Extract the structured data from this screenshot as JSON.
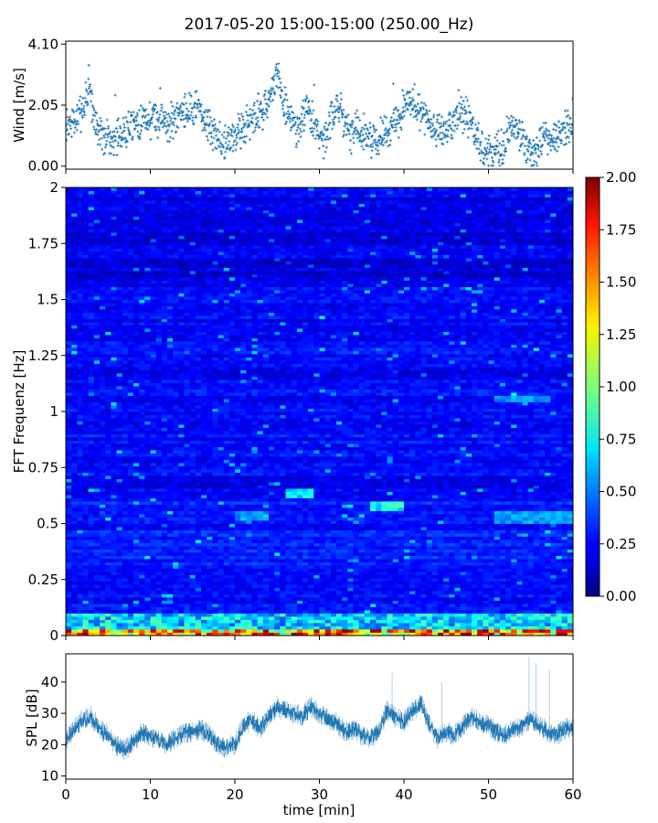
{
  "figure": {
    "title": "2017-05-20 15:00-15:00 (250.00_Hz)"
  },
  "chart_data": [
    {
      "id": "wind",
      "type": "scatter",
      "ylabel": "Wind [m/s]",
      "xlabel": "",
      "xlim": [
        0,
        60
      ],
      "ylim": [
        -0.1,
        4.2
      ],
      "yticks": [
        0.0,
        2.05,
        4.1
      ],
      "ytick_labels": [
        "0.00",
        "2.05",
        "4.10"
      ],
      "xticks": [
        0,
        10,
        20,
        30,
        40,
        50,
        60
      ],
      "color": "#1f77b4",
      "marker": "+",
      "x": [
        0,
        1,
        2,
        2.7,
        3.5,
        4.5,
        5.5,
        6.5,
        7.5,
        8.5,
        9.5,
        10.5,
        11.5,
        12.5,
        13.5,
        14.5,
        15.5,
        16.5,
        17.5,
        18.5,
        19.5,
        20.5,
        21.5,
        22.5,
        23.5,
        24.5,
        25.0,
        25.5,
        26.5,
        27.5,
        28.5,
        29.5,
        30.5,
        31.5,
        32.5,
        33.5,
        34.5,
        35.5,
        36.5,
        37.5,
        38.5,
        39.5,
        40.5,
        41.3,
        42.5,
        43.5,
        44.5,
        45.5,
        46.5,
        47.5,
        48.5,
        49.5,
        50.5,
        51.5,
        52.5,
        53.5,
        54.5,
        55.5,
        56.5,
        57.5,
        58.5,
        59.5
      ],
      "y": [
        1.2,
        1.5,
        1.9,
        2.6,
        1.3,
        1.0,
        0.9,
        1.0,
        1.3,
        1.5,
        1.6,
        1.5,
        1.7,
        1.4,
        1.8,
        1.9,
        2.0,
        1.6,
        1.0,
        0.8,
        0.9,
        1.2,
        1.4,
        1.7,
        1.9,
        2.5,
        3.3,
        2.4,
        1.6,
        1.2,
        2.0,
        1.3,
        0.9,
        1.7,
        1.9,
        1.0,
        1.3,
        1.1,
        0.8,
        1.0,
        1.3,
        1.5,
        2.2,
        2.0,
        1.6,
        1.3,
        1.1,
        1.4,
        1.8,
        1.7,
        1.0,
        0.5,
        0.4,
        0.6,
        1.2,
        1.3,
        0.5,
        0.4,
        0.9,
        1.0,
        1.2,
        1.3
      ]
    },
    {
      "id": "spectrogram",
      "type": "heatmap",
      "ylabel": "FFT Frequenz [Hz]",
      "xlabel": "",
      "xlim": [
        0,
        60
      ],
      "ylim": [
        0,
        2
      ],
      "yticks": [
        0,
        0.25,
        0.5,
        0.75,
        1,
        1.25,
        1.5,
        1.75,
        2
      ],
      "ytick_labels": [
        "0",
        "0.25",
        "0.5",
        "0.75",
        "1",
        "1.25",
        "1.5",
        "1.75",
        "2"
      ],
      "xticks": [
        0,
        10,
        20,
        30,
        40,
        50,
        60
      ],
      "colormap": "jet",
      "colorbar": {
        "vmin": 0.0,
        "vmax": 2.0,
        "ticks": [
          0.0,
          0.25,
          0.5,
          0.75,
          1.0,
          1.25,
          1.5,
          1.75,
          2.0
        ],
        "tick_labels": [
          "0.00",
          "0.25",
          "0.50",
          "0.75",
          "1.00",
          "1.25",
          "1.50",
          "1.75",
          "2.00"
        ],
        "placement": "right"
      },
      "features": [
        {
          "band_hz": [
            0.0,
            0.03
          ],
          "level": 1.6
        },
        {
          "band_hz": [
            0.03,
            0.1
          ],
          "level": 0.75
        },
        {
          "patch": "x 26-29 min, f 0.62-0.65 Hz",
          "level": 0.75
        },
        {
          "patch": "x 36-40 min, f 0.56-0.6 Hz",
          "level": 0.8
        },
        {
          "patch": "x 20-24 min, f 0.52-0.55 Hz",
          "level": 0.6
        },
        {
          "patch": "x 51-60 min, f 0.5-0.56 Hz",
          "level": 0.6
        },
        {
          "patch": "x 51-57 min, f 1.04-1.07 Hz",
          "level": 0.55
        }
      ],
      "background_level": 0.25
    },
    {
      "id": "spl",
      "type": "line",
      "ylabel": "SPL [dB]",
      "xlabel": "time [min]",
      "xlim": [
        0,
        60
      ],
      "ylim": [
        9,
        49
      ],
      "yticks": [
        10,
        20,
        30,
        40
      ],
      "ytick_labels": [
        "10",
        "20",
        "30",
        "40"
      ],
      "xticks": [
        0,
        10,
        20,
        30,
        40,
        50,
        60
      ],
      "xtick_labels": [
        "0",
        "10",
        "20",
        "30",
        "40",
        "50",
        "60"
      ],
      "color": "#1f77b4",
      "x": [
        0,
        1,
        2,
        3,
        4,
        5,
        6,
        7,
        8,
        9,
        10,
        11,
        12,
        13,
        14,
        15,
        16,
        17,
        18,
        19,
        20,
        21,
        22,
        23,
        24,
        25,
        26,
        27,
        28,
        29,
        30,
        31,
        32,
        33,
        34,
        35,
        36,
        37,
        38,
        39,
        40,
        41,
        42,
        43,
        44,
        45,
        46,
        47,
        48,
        49,
        50,
        51,
        52,
        53,
        54,
        55,
        56,
        57,
        58,
        59,
        60
      ],
      "y": [
        21,
        25,
        28,
        29,
        25,
        23,
        20,
        18,
        21,
        24,
        23,
        21,
        20,
        22,
        24,
        24,
        25,
        23,
        20,
        19,
        20,
        26,
        28,
        25,
        29,
        32,
        31,
        30,
        29,
        32,
        30,
        28,
        27,
        24,
        25,
        23,
        22,
        24,
        31,
        29,
        27,
        31,
        33,
        27,
        22,
        24,
        23,
        26,
        29,
        27,
        26,
        24,
        23,
        25,
        26,
        28,
        26,
        24,
        23,
        25,
        26
      ]
    }
  ]
}
